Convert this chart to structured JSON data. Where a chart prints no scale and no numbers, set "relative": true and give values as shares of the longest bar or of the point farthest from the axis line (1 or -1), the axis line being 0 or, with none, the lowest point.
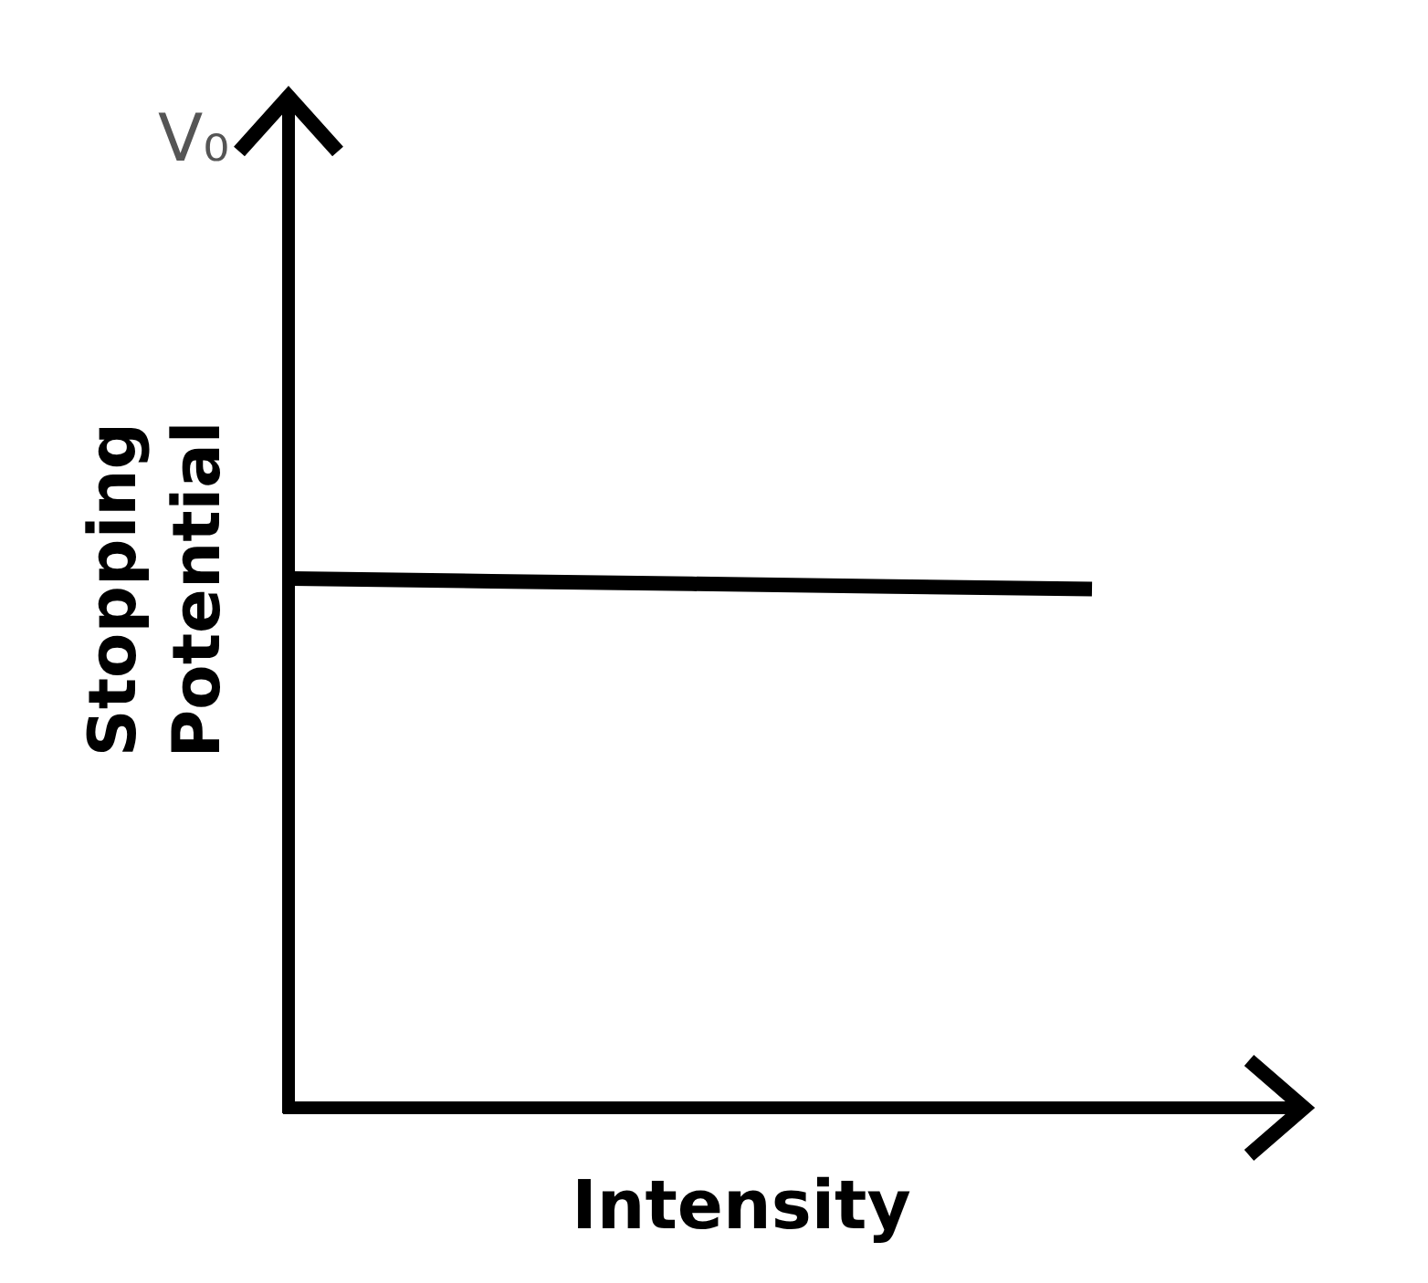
{
  "chart_data": {
    "type": "line",
    "xlabel": "Intensity",
    "ylabel": "Stopping Potential",
    "annotations": [
      "V₀"
    ],
    "categories": [
      null,
      null,
      null,
      null,
      null
    ],
    "values": [
      1,
      0.995,
      0.99,
      0.985,
      0.98
    ],
    "color": "#000000",
    "relative": true
  }
}
